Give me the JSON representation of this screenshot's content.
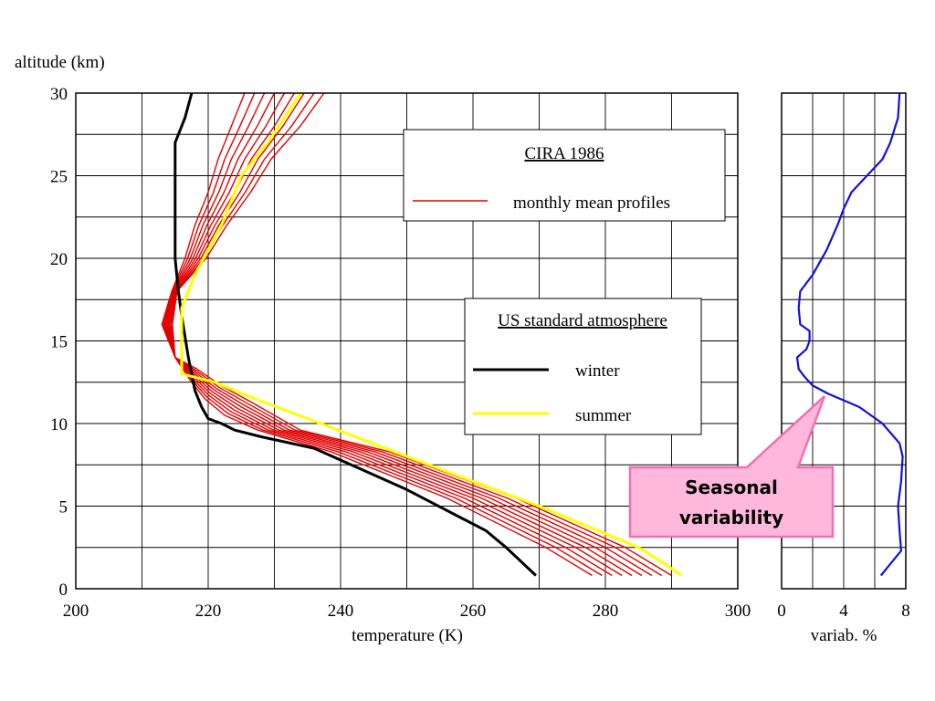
{
  "chart_data": [
    {
      "type": "line",
      "ylabel": "altitude (km)",
      "xlabel": "temperature (K)",
      "xlim": [
        200,
        300
      ],
      "ylim": [
        0,
        30
      ],
      "x_ticks": [
        200,
        220,
        240,
        260,
        280,
        300
      ],
      "y_ticks": [
        0,
        5,
        10,
        15,
        20,
        25,
        30
      ],
      "grid": true,
      "series": [
        {
          "name": "winter",
          "group": "US standard atmosphere",
          "color": "#000000",
          "points": [
            [
              269.5,
              0.8
            ],
            [
              265,
              2.5
            ],
            [
              262,
              3.5
            ],
            [
              250,
              6
            ],
            [
              236,
              8.5
            ],
            [
              228,
              9.2
            ],
            [
              224,
              9.6
            ],
            [
              222,
              10
            ],
            [
              220,
              10.3
            ],
            [
              219,
              11
            ],
            [
              218,
              12
            ],
            [
              217,
              14
            ],
            [
              216,
              16.5
            ],
            [
              215.5,
              18
            ],
            [
              215,
              20
            ],
            [
              215,
              22.5
            ],
            [
              215,
              25
            ],
            [
              215,
              27
            ],
            [
              216.5,
              28.5
            ],
            [
              217.5,
              30
            ]
          ]
        },
        {
          "name": "summer",
          "group": "US standard atmosphere",
          "color": "#ffff00",
          "points": [
            [
              291.5,
              0.8
            ],
            [
              289,
              1.5
            ],
            [
              285,
              2.5
            ],
            [
              270,
              5
            ],
            [
              250,
              8
            ],
            [
              237,
              10
            ],
            [
              227,
              11.5
            ],
            [
              221,
              12.5
            ],
            [
              216,
              13
            ],
            [
              216,
              17
            ],
            [
              218,
              19
            ],
            [
              222,
              22
            ],
            [
              225,
              25
            ],
            [
              229,
              27
            ],
            [
              234,
              30
            ]
          ]
        },
        {
          "name": "monthly mean profiles",
          "group": "CIRA 1986",
          "color": "#e00000",
          "profiles": [
            [
              [
                278.0,
                0.8
              ],
              [
                271.0,
                2.5
              ],
              [
                256.0,
                5.5
              ],
              [
                238.5,
                8.3
              ],
              [
                227.5,
                9.6
              ],
              [
                222.5,
                10.5
              ],
              [
                219.5,
                11.5
              ],
              [
                217.5,
                12.5
              ],
              [
                215.0,
                14.0
              ],
              [
                213.0,
                16.0
              ],
              [
                214.5,
                18.0
              ],
              [
                216.5,
                20.0
              ],
              [
                218.0,
                22.0
              ],
              [
                220.0,
                24.0
              ],
              [
                221.5,
                26.0
              ],
              [
                223.5,
                28.0
              ],
              [
                225.5,
                30.0
              ]
            ],
            [
              [
                279.5,
                0.8
              ],
              [
                272.5,
                2.5
              ],
              [
                257.3,
                5.5
              ],
              [
                239.6,
                8.3
              ],
              [
                228.3,
                9.6
              ],
              [
                223.0,
                10.6
              ],
              [
                219.8,
                11.6
              ],
              [
                217.6,
                12.6
              ],
              [
                215.0,
                14.0
              ],
              [
                213.2,
                16.0
              ],
              [
                214.6,
                18.0
              ],
              [
                216.9,
                20.0
              ],
              [
                218.6,
                22.0
              ],
              [
                220.8,
                24.0
              ],
              [
                222.5,
                26.0
              ],
              [
                224.8,
                28.0
              ],
              [
                227.0,
                30.0
              ]
            ],
            [
              [
                281.0,
                0.8
              ],
              [
                274.0,
                2.5
              ],
              [
                258.6,
                5.5
              ],
              [
                240.7,
                8.3
              ],
              [
                229.1,
                9.6
              ],
              [
                223.5,
                10.7
              ],
              [
                220.1,
                11.7
              ],
              [
                217.7,
                12.7
              ],
              [
                215.0,
                14.0
              ],
              [
                213.4,
                16.0
              ],
              [
                214.7,
                18.0
              ],
              [
                217.3,
                20.0
              ],
              [
                219.2,
                22.0
              ],
              [
                221.6,
                24.0
              ],
              [
                223.5,
                26.0
              ],
              [
                226.1,
                28.0
              ],
              [
                228.5,
                30.0
              ]
            ],
            [
              [
                282.5,
                0.8
              ],
              [
                275.5,
                2.5
              ],
              [
                259.9,
                5.5
              ],
              [
                241.8,
                8.3
              ],
              [
                229.9,
                9.6
              ],
              [
                224.0,
                10.8
              ],
              [
                220.4,
                11.8
              ],
              [
                217.8,
                12.8
              ],
              [
                215.0,
                14.0
              ],
              [
                213.6,
                16.0
              ],
              [
                214.8,
                18.0
              ],
              [
                217.7,
                20.0
              ],
              [
                219.8,
                22.0
              ],
              [
                222.4,
                24.0
              ],
              [
                224.5,
                26.0
              ],
              [
                227.4,
                28.0
              ],
              [
                230.0,
                30.0
              ]
            ],
            [
              [
                284.0,
                0.8
              ],
              [
                277.0,
                2.5
              ],
              [
                261.2,
                5.5
              ],
              [
                242.9,
                8.3
              ],
              [
                230.7,
                9.6
              ],
              [
                224.5,
                10.9
              ],
              [
                220.7,
                11.9
              ],
              [
                217.9,
                12.9
              ],
              [
                215.0,
                14.0
              ],
              [
                213.8,
                16.0
              ],
              [
                214.9,
                18.0
              ],
              [
                218.1,
                20.0
              ],
              [
                220.4,
                22.0
              ],
              [
                223.2,
                24.0
              ],
              [
                225.5,
                26.0
              ],
              [
                228.7,
                28.0
              ],
              [
                231.5,
                30.0
              ]
            ],
            [
              [
                285.5,
                0.8
              ],
              [
                278.5,
                2.5
              ],
              [
                262.5,
                5.5
              ],
              [
                244.0,
                8.3
              ],
              [
                231.5,
                9.6
              ],
              [
                225.0,
                11.0
              ],
              [
                221.0,
                12.0
              ],
              [
                218.0,
                13.0
              ],
              [
                215.0,
                14.0
              ],
              [
                214.0,
                16.0
              ],
              [
                215.0,
                18.0
              ],
              [
                218.5,
                20.0
              ],
              [
                221.0,
                22.0
              ],
              [
                224.0,
                24.0
              ],
              [
                226.5,
                26.0
              ],
              [
                230.0,
                28.0
              ],
              [
                233.0,
                30.0
              ]
            ],
            [
              [
                287.0,
                0.8
              ],
              [
                280.0,
                2.5
              ],
              [
                263.8,
                5.5
              ],
              [
                245.1,
                8.3
              ],
              [
                232.3,
                9.6
              ],
              [
                225.5,
                11.1
              ],
              [
                221.3,
                12.1
              ],
              [
                218.1,
                13.1
              ],
              [
                215.0,
                14.0
              ],
              [
                214.2,
                16.0
              ],
              [
                215.1,
                18.0
              ],
              [
                218.9,
                20.0
              ],
              [
                221.6,
                22.0
              ],
              [
                224.8,
                24.0
              ],
              [
                227.5,
                26.0
              ],
              [
                231.3,
                28.0
              ],
              [
                234.5,
                30.0
              ]
            ],
            [
              [
                288.5,
                0.8
              ],
              [
                281.5,
                2.5
              ],
              [
                265.1,
                5.5
              ],
              [
                246.2,
                8.3
              ],
              [
                233.1,
                9.6
              ],
              [
                226.0,
                11.2
              ],
              [
                221.6,
                12.2
              ],
              [
                218.2,
                13.2
              ],
              [
                215.0,
                14.0
              ],
              [
                214.4,
                16.0
              ],
              [
                215.2,
                18.0
              ],
              [
                219.3,
                20.0
              ],
              [
                222.2,
                22.0
              ],
              [
                225.6,
                24.0
              ],
              [
                228.5,
                26.0
              ],
              [
                232.6,
                28.0
              ],
              [
                236.0,
                30.0
              ]
            ],
            [
              [
                290.0,
                0.8
              ],
              [
                283.0,
                2.5
              ],
              [
                266.4,
                5.5
              ],
              [
                247.3,
                8.3
              ],
              [
                233.9,
                9.6
              ],
              [
                226.5,
                11.3
              ],
              [
                221.9,
                12.3
              ],
              [
                218.3,
                13.3
              ],
              [
                215.0,
                14.0
              ],
              [
                214.6,
                16.0
              ],
              [
                215.3,
                18.0
              ],
              [
                219.7,
                20.0
              ],
              [
                222.8,
                22.0
              ],
              [
                226.4,
                24.0
              ],
              [
                229.5,
                26.0
              ],
              [
                233.9,
                28.0
              ],
              [
                237.5,
                30.0
              ]
            ]
          ]
        }
      ]
    },
    {
      "type": "line",
      "xlabel": "variab. %",
      "xlim": [
        0,
        8
      ],
      "ylim": [
        0,
        30
      ],
      "x_ticks": [
        0,
        4,
        8
      ],
      "grid": true,
      "series": [
        {
          "name": "variability",
          "color": "#1010e0",
          "points": [
            [
              6.4,
              0.8
            ],
            [
              7.0,
              1.5
            ],
            [
              7.7,
              2.3
            ],
            [
              7.6,
              3.5
            ],
            [
              7.5,
              5.0
            ],
            [
              7.7,
              6.5
            ],
            [
              7.8,
              8.0
            ],
            [
              7.6,
              8.8
            ],
            [
              6.5,
              10.0
            ],
            [
              5.0,
              11.0
            ],
            [
              3.0,
              11.8
            ],
            [
              2.0,
              12.3
            ],
            [
              1.5,
              12.8
            ],
            [
              1.1,
              13.3
            ],
            [
              1.0,
              14.0
            ],
            [
              1.6,
              14.5
            ],
            [
              1.8,
              15.0
            ],
            [
              1.8,
              15.6
            ],
            [
              1.2,
              16.0
            ],
            [
              1.1,
              17.0
            ],
            [
              1.2,
              18.0
            ],
            [
              2.0,
              19.0
            ],
            [
              2.9,
              20.5
            ],
            [
              3.6,
              22.0
            ],
            [
              4.0,
              23.0
            ],
            [
              4.5,
              24.0
            ],
            [
              5.5,
              25.0
            ],
            [
              6.5,
              26.0
            ],
            [
              7.0,
              27.0
            ],
            [
              7.5,
              28.5
            ],
            [
              7.6,
              30.0
            ]
          ]
        }
      ]
    }
  ],
  "legends": {
    "cira": {
      "title": "CIRA 1986",
      "entry": "monthly mean profiles"
    },
    "us_std": {
      "title": "US standard atmosphere",
      "winter": "winter",
      "summer": "summer"
    }
  },
  "callout": {
    "line1": "Seasonal",
    "line2": "variability",
    "fill": "#ffb8dc",
    "border": "#f070b0"
  }
}
